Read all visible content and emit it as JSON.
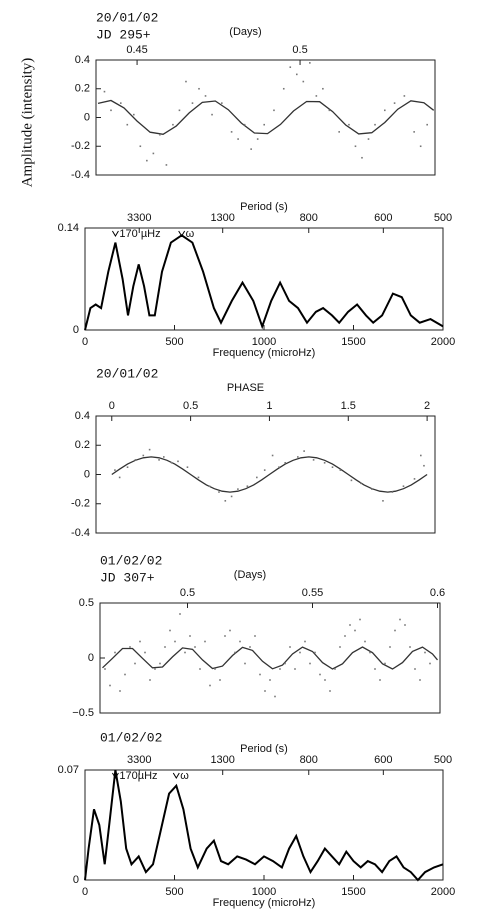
{
  "chart_data": [
    {
      "type": "scatter",
      "title": "20/01/02",
      "subtitle": "JD   295+",
      "xlabel": "(Days)",
      "ylabel": "Amplitude (intensity)",
      "xlim": [
        0.4374,
        0.5414
      ],
      "ylim": [
        -0.4,
        0.4
      ],
      "xticks": [
        0.45,
        0.5
      ],
      "yticks": [
        0.4,
        0.2,
        0,
        -0.2,
        -0.4
      ],
      "x": [
        0.44,
        0.442,
        0.445,
        0.447,
        0.449,
        0.451,
        0.453,
        0.455,
        0.457,
        0.459,
        0.461,
        0.463,
        0.465,
        0.467,
        0.469,
        0.471,
        0.473,
        0.476,
        0.479,
        0.481,
        0.483,
        0.485,
        0.487,
        0.489,
        0.492,
        0.495,
        0.497,
        0.499,
        0.501,
        0.503,
        0.505,
        0.507,
        0.509,
        0.512,
        0.515,
        0.517,
        0.519,
        0.521,
        0.523,
        0.526,
        0.529,
        0.532,
        0.535,
        0.537,
        0.539
      ],
      "values": [
        0.18,
        0.05,
        0.1,
        -0.05,
        0.02,
        -0.2,
        -0.3,
        -0.25,
        -0.12,
        -0.33,
        -0.05,
        0.05,
        0.25,
        0.1,
        0.2,
        0.15,
        0.02,
        0.1,
        -0.1,
        -0.15,
        -0.05,
        -0.22,
        -0.15,
        -0.05,
        0.05,
        0.2,
        0.35,
        0.3,
        0.25,
        0.38,
        0.15,
        0.2,
        0.05,
        -0.1,
        -0.05,
        -0.2,
        -0.28,
        -0.15,
        -0.05,
        0.05,
        0.1,
        0.15,
        -0.1,
        -0.2,
        -0.05
      ],
      "fit": {
        "x": [
          0.438,
          0.442,
          0.446,
          0.45,
          0.454,
          0.458,
          0.462,
          0.466,
          0.47,
          0.474,
          0.478,
          0.482,
          0.486,
          0.49,
          0.494,
          0.498,
          0.502,
          0.506,
          0.51,
          0.514,
          0.518,
          0.522,
          0.526,
          0.53,
          0.534,
          0.538,
          0.541
        ],
        "values": [
          0.098,
          0.118,
          0.067,
          -0.025,
          -0.102,
          -0.117,
          -0.06,
          0.032,
          0.105,
          0.115,
          0.054,
          -0.039,
          -0.108,
          -0.112,
          -0.048,
          0.045,
          0.111,
          0.11,
          0.041,
          -0.052,
          -0.114,
          -0.106,
          -0.035,
          0.058,
          0.116,
          0.103,
          0.05
        ]
      }
    },
    {
      "type": "line",
      "xlabel": "Frequency (microHz)",
      "period_label": "Period (s)",
      "period_ticks": [
        3300,
        1300,
        800,
        600,
        500
      ],
      "xlim": [
        0,
        2000
      ],
      "ylim": [
        0,
        0.14
      ],
      "xticks": [
        0,
        500,
        1000,
        1500,
        2000
      ],
      "yticks": [
        0,
        0.14
      ],
      "x": [
        0,
        30,
        60,
        90,
        130,
        170,
        210,
        240,
        270,
        300,
        330,
        360,
        390,
        430,
        480,
        540,
        600,
        660,
        720,
        760,
        820,
        880,
        940,
        990,
        1040,
        1090,
        1140,
        1190,
        1240,
        1290,
        1330,
        1380,
        1420,
        1470,
        1520,
        1570,
        1610,
        1660,
        1720,
        1770,
        1820,
        1870,
        1930,
        2000
      ],
      "values": [
        0,
        0.03,
        0.035,
        0.03,
        0.08,
        0.12,
        0.07,
        0.02,
        0.06,
        0.09,
        0.06,
        0.02,
        0.02,
        0.08,
        0.12,
        0.13,
        0.12,
        0.08,
        0.03,
        0.01,
        0.04,
        0.065,
        0.04,
        0.005,
        0.04,
        0.065,
        0.04,
        0.03,
        0.01,
        0.025,
        0.03,
        0.02,
        0.01,
        0.025,
        0.035,
        0.02,
        0.01,
        0.02,
        0.05,
        0.045,
        0.02,
        0.01,
        0.015,
        0.005
      ],
      "annotations": [
        {
          "text": "170 µHz",
          "x": 170
        },
        {
          "text": "ω",
          "x": 540
        }
      ]
    },
    {
      "type": "scatter",
      "title": "20/01/02",
      "xlabel": "PHASE",
      "xlim": [
        -0.1,
        2.05
      ],
      "ylim": [
        -0.4,
        0.4
      ],
      "xticks": [
        0,
        0.5,
        1,
        1.5,
        2
      ],
      "yticks": [
        0.4,
        0.2,
        0,
        -0.2,
        -0.4
      ],
      "x": [
        0.02,
        0.05,
        0.1,
        0.15,
        0.2,
        0.24,
        0.3,
        0.33,
        0.38,
        0.42,
        0.48,
        0.55,
        0.62,
        0.68,
        0.72,
        0.76,
        0.8,
        0.86,
        0.92,
        0.97,
        1.02,
        1.06,
        1.1,
        1.18,
        1.22,
        1.28,
        1.35,
        1.4,
        1.45,
        1.52,
        1.58,
        1.65,
        1.72,
        1.78,
        1.85,
        1.92,
        1.96,
        1.98
      ],
      "values": [
        0.03,
        -0.02,
        0.05,
        0.1,
        0.13,
        0.17,
        0.1,
        0.12,
        0.08,
        0.09,
        0.05,
        -0.02,
        -0.08,
        -0.12,
        -0.18,
        -0.15,
        -0.1,
        -0.08,
        -0.02,
        0.03,
        0.13,
        0.05,
        0.08,
        0.12,
        0.16,
        0.1,
        0.08,
        0.05,
        0.03,
        -0.04,
        -0.06,
        -0.1,
        -0.18,
        -0.12,
        -0.08,
        -0.03,
        0.13,
        0.06
      ],
      "fit": {
        "x": [
          0,
          0.05,
          0.1,
          0.15,
          0.2,
          0.25,
          0.3,
          0.35,
          0.4,
          0.45,
          0.5,
          0.55,
          0.6,
          0.65,
          0.7,
          0.75,
          0.8,
          0.85,
          0.9,
          0.95,
          1,
          1.05,
          1.1,
          1.15,
          1.2,
          1.25,
          1.3,
          1.35,
          1.4,
          1.45,
          1.5,
          1.55,
          1.6,
          1.65,
          1.7,
          1.75,
          1.8,
          1.85,
          1.9,
          1.95,
          2
        ],
        "values": [
          0,
          0.037,
          0.071,
          0.097,
          0.114,
          0.12,
          0.114,
          0.097,
          0.071,
          0.037,
          0,
          -0.037,
          -0.071,
          -0.097,
          -0.114,
          -0.12,
          -0.114,
          -0.097,
          -0.071,
          -0.037,
          0,
          0.037,
          0.071,
          0.097,
          0.114,
          0.12,
          0.114,
          0.097,
          0.071,
          0.037,
          0,
          -0.037,
          -0.071,
          -0.097,
          -0.114,
          -0.12,
          -0.114,
          -0.097,
          -0.071,
          -0.037,
          0
        ]
      }
    },
    {
      "type": "scatter",
      "title": "01/02/02",
      "subtitle": "JD    307+",
      "xlabel": "(Days)",
      "xlim": [
        0.465,
        0.601
      ],
      "ylim": [
        -0.5,
        0.5
      ],
      "xticks": [
        0.5,
        0.55,
        0.6
      ],
      "yticks": [
        0.5,
        0,
        {
          "value": -0.5,
          "label": "−0.5"
        }
      ],
      "x": [
        0.467,
        0.469,
        0.471,
        0.473,
        0.475,
        0.477,
        0.479,
        0.481,
        0.483,
        0.485,
        0.487,
        0.489,
        0.491,
        0.493,
        0.495,
        0.497,
        0.499,
        0.501,
        0.503,
        0.505,
        0.507,
        0.509,
        0.511,
        0.513,
        0.515,
        0.517,
        0.519,
        0.521,
        0.523,
        0.525,
        0.527,
        0.529,
        0.531,
        0.533,
        0.535,
        0.537,
        0.539,
        0.541,
        0.543,
        0.545,
        0.547,
        0.549,
        0.551,
        0.553,
        0.555,
        0.557,
        0.559,
        0.561,
        0.563,
        0.565,
        0.567,
        0.569,
        0.571,
        0.573,
        0.575,
        0.577,
        0.579,
        0.581,
        0.583,
        0.585,
        0.587,
        0.589,
        0.591,
        0.593,
        0.595,
        0.597
      ],
      "values": [
        -0.1,
        -0.25,
        0.05,
        -0.3,
        -0.15,
        0.1,
        -0.05,
        0.15,
        0.05,
        -0.2,
        -0.1,
        -0.05,
        0.1,
        0.25,
        0.15,
        0.4,
        0.05,
        0.2,
        0.1,
        -0.1,
        0.15,
        -0.25,
        -0.1,
        -0.2,
        0.2,
        0.25,
        0.05,
        0.15,
        -0.05,
        0.1,
        0.2,
        -0.15,
        -0.3,
        -0.2,
        -0.35,
        -0.1,
        -0.05,
        0.1,
        -0.1,
        0.05,
        0.15,
        -0.05,
        0.05,
        -0.15,
        -0.2,
        -0.3,
        -0.1,
        0.1,
        0.2,
        0.3,
        0.25,
        0.35,
        0.15,
        0.05,
        -0.1,
        -0.2,
        -0.05,
        0.1,
        0.25,
        0.35,
        0.3,
        0.1,
        -0.1,
        -0.2,
        0.05,
        -0.05
      ],
      "fit": {
        "x": [
          0.466,
          0.47,
          0.474,
          0.478,
          0.482,
          0.486,
          0.49,
          0.494,
          0.498,
          0.502,
          0.506,
          0.51,
          0.514,
          0.518,
          0.522,
          0.526,
          0.53,
          0.534,
          0.538,
          0.542,
          0.546,
          0.55,
          0.554,
          0.558,
          0.562,
          0.566,
          0.57,
          0.574,
          0.578,
          0.582,
          0.586,
          0.59,
          0.594,
          0.598,
          0.6
        ],
        "values": [
          -0.089,
          -0.003,
          0.086,
          0.086,
          -0.003,
          -0.089,
          -0.082,
          0.01,
          0.092,
          0.079,
          -0.017,
          -0.095,
          -0.074,
          0.023,
          0.096,
          0.069,
          -0.03,
          -0.098,
          -0.065,
          0.036,
          0.099,
          0.059,
          -0.042,
          -0.1,
          -0.053,
          0.048,
          0.1,
          0.048,
          -0.053,
          -0.1,
          -0.042,
          0.06,
          0.099,
          0.036,
          -0.017
        ]
      }
    },
    {
      "type": "line",
      "title": "01/02/02",
      "xlabel": "Frequency (microHz)",
      "period_label": "Period (s)",
      "period_ticks": [
        3300,
        1300,
        800,
        600,
        500
      ],
      "xlim": [
        0,
        2000
      ],
      "ylim": [
        0,
        0.07
      ],
      "xticks": [
        0,
        500,
        1000,
        1500,
        2000
      ],
      "yticks": [
        0,
        0.07
      ],
      "x": [
        0,
        20,
        50,
        80,
        110,
        140,
        170,
        200,
        230,
        260,
        300,
        340,
        380,
        420,
        470,
        510,
        550,
        590,
        630,
        680,
        720,
        760,
        800,
        850,
        900,
        950,
        1000,
        1050,
        1100,
        1140,
        1180,
        1220,
        1260,
        1300,
        1340,
        1380,
        1420,
        1460,
        1500,
        1540,
        1580,
        1620,
        1660,
        1700,
        1740,
        1780,
        1820,
        1860,
        1900,
        1950,
        2000
      ],
      "values": [
        0,
        0.02,
        0.045,
        0.035,
        0.01,
        0.04,
        0.07,
        0.05,
        0.02,
        0.01,
        0.015,
        0.005,
        0.01,
        0.03,
        0.055,
        0.06,
        0.045,
        0.02,
        0.008,
        0.02,
        0.025,
        0.012,
        0.01,
        0.015,
        0.013,
        0.01,
        0.015,
        0.012,
        0.008,
        0.02,
        0.028,
        0.015,
        0.005,
        0.012,
        0.02,
        0.015,
        0.01,
        0.018,
        0.012,
        0.008,
        0.012,
        0.01,
        0.005,
        0.012,
        0.015,
        0.008,
        0.005,
        0,
        0.005,
        0.008,
        0.01
      ],
      "annotations": [
        {
          "text": "170µHz",
          "x": 170
        },
        {
          "text": "ω",
          "x": 510
        }
      ]
    }
  ]
}
